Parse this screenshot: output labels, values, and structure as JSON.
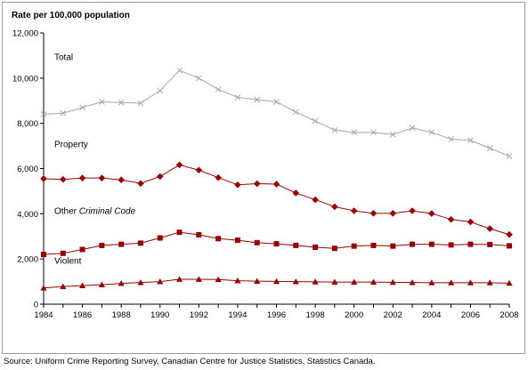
{
  "chart_data": {
    "type": "line",
    "title": "",
    "ylabel": "Rate per 100,000 population",
    "xlabel": "",
    "ylim": [
      0,
      12000
    ],
    "yticks": [
      0,
      2000,
      4000,
      6000,
      8000,
      10000,
      12000
    ],
    "ytick_labels": [
      "0",
      "2,000",
      "4,000",
      "6,000",
      "8,000",
      "10,000",
      "12,000"
    ],
    "xticks": [
      1984,
      1986,
      1988,
      1990,
      1992,
      1994,
      1996,
      1998,
      2000,
      2002,
      2004,
      2006,
      2008
    ],
    "xtick_labels": [
      "1984",
      "1986",
      "1988",
      "1990",
      "1992",
      "1994",
      "1996",
      "1998",
      "2000",
      "2002",
      "2004",
      "2006",
      "2008"
    ],
    "x": [
      1984,
      1985,
      1986,
      1987,
      1988,
      1989,
      1990,
      1991,
      1992,
      1993,
      1994,
      1995,
      1996,
      1997,
      1998,
      1999,
      2000,
      2001,
      2002,
      2003,
      2004,
      2005,
      2006,
      2007,
      2008
    ],
    "grid": false,
    "series": [
      {
        "name": "Total",
        "label_parts": [
          {
            "text": "Total",
            "italic": false
          }
        ],
        "color": "#a6a6a6",
        "marker": "x",
        "values": [
          8400,
          8450,
          8700,
          8950,
          8920,
          8890,
          9450,
          10340,
          10000,
          9500,
          9150,
          9050,
          8950,
          8500,
          8100,
          7700,
          7600,
          7600,
          7500,
          7800,
          7600,
          7300,
          7250,
          6900,
          6550
        ]
      },
      {
        "name": "Property",
        "label_parts": [
          {
            "text": "Property",
            "italic": false
          }
        ],
        "color": "#990000",
        "marker": "diamond",
        "values": [
          5550,
          5520,
          5580,
          5580,
          5500,
          5340,
          5650,
          6160,
          5930,
          5600,
          5280,
          5330,
          5310,
          4920,
          4620,
          4310,
          4130,
          4020,
          4020,
          4130,
          4010,
          3750,
          3640,
          3340,
          3080
        ]
      },
      {
        "name": "Other Criminal Code",
        "label_parts": [
          {
            "text": "Other ",
            "italic": false
          },
          {
            "text": "Criminal Code",
            "italic": true
          }
        ],
        "color": "#990000",
        "marker": "square",
        "values": [
          2200,
          2250,
          2420,
          2600,
          2650,
          2700,
          2930,
          3180,
          3070,
          2900,
          2830,
          2720,
          2670,
          2600,
          2520,
          2470,
          2570,
          2600,
          2570,
          2650,
          2650,
          2620,
          2650,
          2640,
          2580
        ]
      },
      {
        "name": "Violent",
        "label_parts": [
          {
            "text": "Violent",
            "italic": false
          }
        ],
        "color": "#990000",
        "marker": "triangle",
        "values": [
          720,
          780,
          820,
          860,
          920,
          960,
          1000,
          1100,
          1100,
          1090,
          1040,
          1020,
          1010,
          1000,
          990,
          980,
          980,
          980,
          970,
          960,
          950,
          950,
          950,
          950,
          930
        ]
      }
    ]
  },
  "source_note": "Source: Uniform Crime Reporting Survey, Canadian Centre for Justice Statistics, Statistics Canada."
}
